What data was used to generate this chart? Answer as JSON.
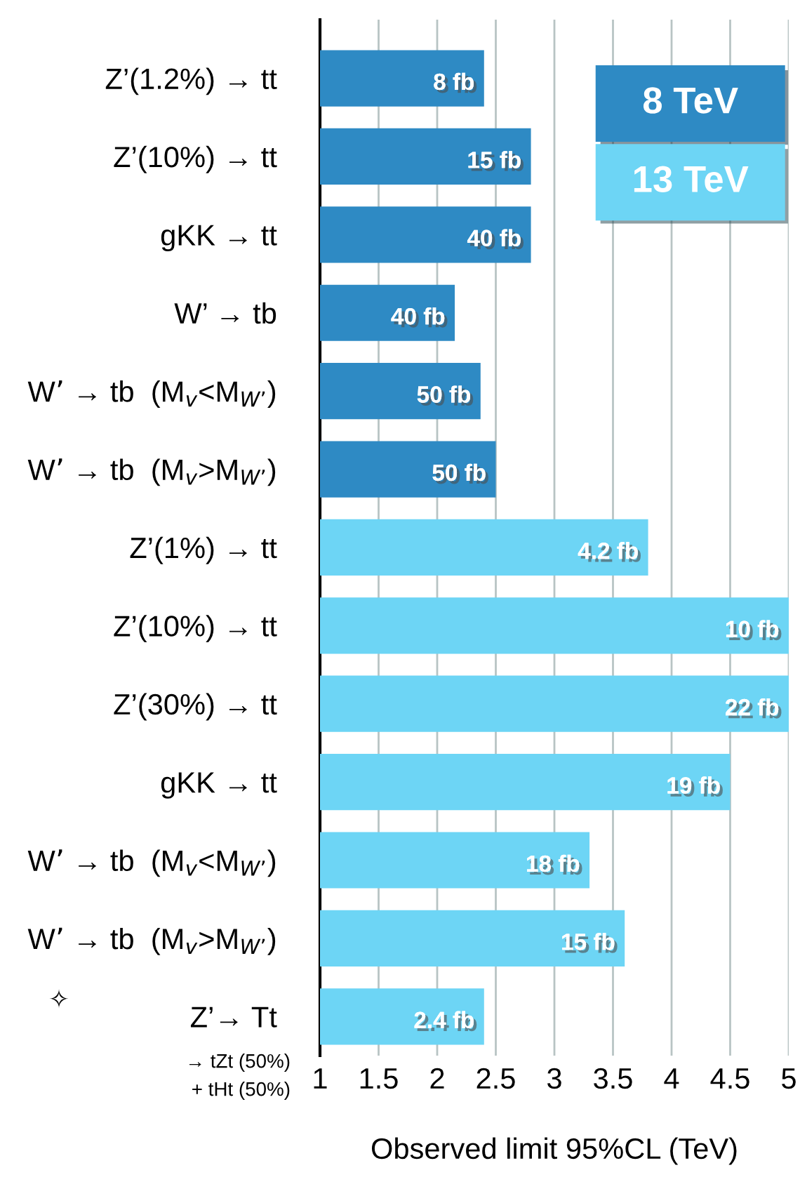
{
  "chart_data": {
    "type": "bar",
    "orientation": "horizontal",
    "xlabel": "Observed limit 95%CL (TeV)",
    "categories": [
      "Z’(1.2%) → tt",
      "Z’(10%) → tt",
      "gKK → tt",
      "W’ → tb",
      "W’ → tb  (M$_{v}$<M$_{W’}$)",
      "W’ → tb  (M$_{v}$>M$_{W’}$)",
      "Z’(1%) → tt",
      "Z’(10%) → tt",
      "Z’(30%) → tt",
      "gKK → tt",
      "W’ → tb  (M$_{v}$<M$_{W’}$)",
      "W’ → tb  (M$_{v}$>M$_{W’}$)",
      "Z’→ Tt"
    ],
    "series": [
      {
        "name": "8 TeV",
        "color": "#2e8ac4",
        "values": [
          2.4,
          2.8,
          2.8,
          2.15,
          2.37,
          2.5,
          null,
          null,
          null,
          null,
          null,
          null,
          null
        ]
      },
      {
        "name": "13 TeV",
        "color": "#6dd5f5",
        "values": [
          null,
          null,
          null,
          null,
          null,
          null,
          3.8,
          5.0,
          5.0,
          4.5,
          3.3,
          3.6,
          2.4
        ]
      }
    ],
    "xlim": [
      1,
      5
    ],
    "xticks": [
      1,
      1.5,
      2,
      2.5,
      3,
      3.5,
      4,
      4.5,
      5
    ],
    "grid": "x",
    "legend": "top right",
    "annotations": [
      "✧",
      "→ tZt (50%)",
      "+ tHt (50%)",
      "8 fb",
      "15 fb",
      "40 fb",
      "40 fb",
      "50 fb",
      "50 fb",
      "4.2 fb",
      "10 fb",
      "22 fb",
      "19 fb",
      "18 fb",
      "15 fb",
      "2.4 fb"
    ]
  }
}
